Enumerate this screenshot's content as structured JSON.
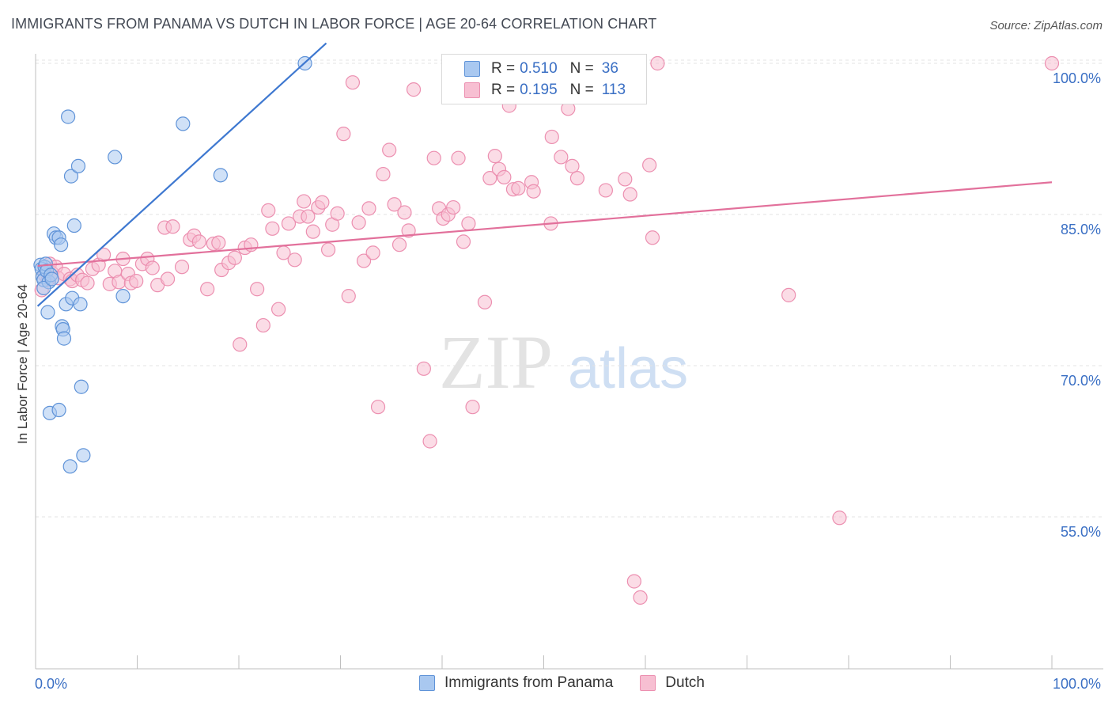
{
  "header": {
    "title": "IMMIGRANTS FROM PANAMA VS DUTCH IN LABOR FORCE | AGE 20-64 CORRELATION CHART",
    "source": "Source: ZipAtlas.com"
  },
  "legend": {
    "rows": [
      {
        "r_label": "R =",
        "r_value": "0.510",
        "n_label": "N =",
        "n_value": "36"
      },
      {
        "r_label": "R =",
        "r_value": "0.195",
        "n_label": "N =",
        "n_value": "113"
      }
    ]
  },
  "bottom_legend": {
    "panama": "Immigrants from Panama",
    "dutch": "Dutch"
  },
  "watermark": {
    "zip": "ZIP",
    "atlas": "atlas"
  },
  "colors": {
    "panama_fill": "#a9c8f0",
    "panama_stroke": "#5f93d8",
    "panama_line": "#3e78d0",
    "dutch_fill": "#f7bfd2",
    "dutch_stroke": "#ec8fb0",
    "dutch_line": "#e2709b",
    "value_text": "#3a6fc4"
  },
  "chart_data": {
    "type": "scatter",
    "title": "IMMIGRANTS FROM PANAMA VS DUTCH IN LABOR FORCE | AGE 20-64 CORRELATION CHART",
    "xlabel": "",
    "ylabel": "In Labor Force | Age 20-64",
    "xlim": [
      0,
      100
    ],
    "ylim": [
      42,
      103
    ],
    "x_tick_labels": [
      "0.0%",
      "100.0%"
    ],
    "y_ticks": [
      55,
      70,
      85,
      100
    ],
    "y_tick_labels": [
      "55.0%",
      "70.0%",
      "85.0%",
      "100.0%"
    ],
    "grid": true,
    "series": [
      {
        "name": "Immigrants from Panama",
        "R": 0.51,
        "N": 36,
        "trend": {
          "x0": 0.2,
          "y0": 75.9,
          "x1": 28.6,
          "y1": 102
        },
        "points": [
          [
            0.5,
            80.0
          ],
          [
            0.6,
            79.6
          ],
          [
            0.7,
            78.8
          ],
          [
            0.8,
            78.5
          ],
          [
            0.9,
            79.8
          ],
          [
            1.0,
            80.1
          ],
          [
            1.1,
            79.4
          ],
          [
            1.3,
            78.3
          ],
          [
            0.8,
            77.7
          ],
          [
            1.2,
            75.3
          ],
          [
            1.5,
            79.0
          ],
          [
            1.6,
            78.6
          ],
          [
            1.8,
            83.1
          ],
          [
            2.0,
            82.7
          ],
          [
            2.3,
            82.7
          ],
          [
            2.5,
            82.0
          ],
          [
            2.6,
            73.9
          ],
          [
            2.7,
            73.6
          ],
          [
            2.8,
            72.7
          ],
          [
            3.0,
            76.1
          ],
          [
            3.4,
            60.0
          ],
          [
            3.2,
            94.7
          ],
          [
            3.5,
            88.8
          ],
          [
            3.6,
            76.7
          ],
          [
            3.8,
            83.9
          ],
          [
            4.2,
            89.8
          ],
          [
            4.4,
            76.1
          ],
          [
            4.5,
            67.9
          ],
          [
            4.7,
            61.1
          ],
          [
            7.8,
            90.7
          ],
          [
            8.6,
            76.9
          ],
          [
            14.5,
            94.0
          ],
          [
            18.2,
            88.9
          ],
          [
            26.5,
            100.0
          ],
          [
            1.4,
            65.3
          ],
          [
            2.3,
            65.6
          ]
        ]
      },
      {
        "name": "Dutch",
        "R": 0.195,
        "N": 113,
        "trend": {
          "x0": 0.2,
          "y0": 79.9,
          "x1": 100,
          "y1": 88.2
        },
        "points": [
          [
            0.6,
            77.5
          ],
          [
            0.9,
            79.0
          ],
          [
            1.2,
            78.5
          ],
          [
            1.4,
            80.1
          ],
          [
            1.6,
            79.2
          ],
          [
            2.0,
            79.8
          ],
          [
            2.2,
            78.7
          ],
          [
            2.8,
            79.1
          ],
          [
            3.4,
            78.6
          ],
          [
            3.6,
            78.4
          ],
          [
            4.1,
            79.0
          ],
          [
            4.6,
            78.5
          ],
          [
            5.1,
            78.2
          ],
          [
            5.6,
            79.6
          ],
          [
            6.2,
            80.0
          ],
          [
            6.7,
            81.0
          ],
          [
            7.3,
            78.1
          ],
          [
            7.8,
            79.4
          ],
          [
            8.2,
            78.3
          ],
          [
            8.6,
            80.6
          ],
          [
            9.1,
            79.1
          ],
          [
            9.4,
            78.2
          ],
          [
            9.9,
            78.4
          ],
          [
            10.5,
            80.1
          ],
          [
            11.0,
            80.6
          ],
          [
            11.5,
            79.7
          ],
          [
            12.0,
            78.0
          ],
          [
            12.7,
            83.7
          ],
          [
            13.0,
            78.6
          ],
          [
            13.5,
            83.8
          ],
          [
            14.4,
            79.8
          ],
          [
            15.2,
            82.5
          ],
          [
            15.6,
            82.9
          ],
          [
            16.1,
            82.3
          ],
          [
            16.9,
            77.6
          ],
          [
            17.5,
            82.1
          ],
          [
            18.0,
            82.2
          ],
          [
            18.3,
            79.5
          ],
          [
            19.0,
            80.2
          ],
          [
            19.6,
            80.7
          ],
          [
            20.1,
            72.1
          ],
          [
            20.6,
            81.7
          ],
          [
            21.2,
            82.0
          ],
          [
            21.8,
            77.6
          ],
          [
            22.4,
            74.0
          ],
          [
            22.9,
            85.4
          ],
          [
            23.3,
            83.6
          ],
          [
            23.9,
            75.6
          ],
          [
            24.4,
            81.2
          ],
          [
            24.9,
            84.1
          ],
          [
            25.5,
            80.5
          ],
          [
            26.0,
            84.8
          ],
          [
            26.4,
            86.3
          ],
          [
            26.8,
            84.8
          ],
          [
            27.3,
            83.3
          ],
          [
            27.8,
            85.7
          ],
          [
            28.2,
            86.2
          ],
          [
            28.8,
            81.5
          ],
          [
            29.2,
            84.0
          ],
          [
            29.7,
            85.1
          ],
          [
            30.3,
            93.0
          ],
          [
            30.8,
            76.9
          ],
          [
            31.2,
            98.1
          ],
          [
            31.8,
            84.2
          ],
          [
            32.3,
            80.4
          ],
          [
            32.8,
            85.6
          ],
          [
            33.2,
            81.2
          ],
          [
            33.7,
            65.9
          ],
          [
            34.2,
            89.0
          ],
          [
            34.8,
            91.4
          ],
          [
            35.3,
            86.0
          ],
          [
            35.8,
            82.0
          ],
          [
            36.3,
            85.2
          ],
          [
            36.7,
            83.4
          ],
          [
            37.2,
            97.4
          ],
          [
            38.2,
            69.7
          ],
          [
            38.8,
            62.5
          ],
          [
            39.2,
            90.6
          ],
          [
            39.7,
            85.6
          ],
          [
            40.1,
            84.6
          ],
          [
            40.6,
            85.0
          ],
          [
            41.1,
            85.7
          ],
          [
            41.6,
            90.6
          ],
          [
            42.1,
            82.3
          ],
          [
            42.6,
            84.1
          ],
          [
            43.0,
            65.9
          ],
          [
            44.2,
            76.3
          ],
          [
            44.7,
            88.6
          ],
          [
            45.2,
            90.8
          ],
          [
            45.6,
            89.5
          ],
          [
            46.1,
            88.7
          ],
          [
            46.6,
            95.8
          ],
          [
            47.0,
            87.5
          ],
          [
            47.5,
            87.6
          ],
          [
            48.8,
            88.2
          ],
          [
            49.0,
            87.3
          ],
          [
            50.7,
            84.1
          ],
          [
            50.8,
            92.7
          ],
          [
            51.7,
            90.7
          ],
          [
            52.4,
            95.5
          ],
          [
            52.8,
            89.8
          ],
          [
            53.3,
            88.6
          ],
          [
            56.1,
            87.4
          ],
          [
            58.0,
            88.5
          ],
          [
            58.5,
            87.0
          ],
          [
            58.9,
            48.6
          ],
          [
            59.5,
            47.0
          ],
          [
            60.4,
            89.9
          ],
          [
            60.7,
            82.7
          ],
          [
            61.2,
            100.0
          ],
          [
            74.1,
            77.0
          ],
          [
            79.1,
            54.9
          ],
          [
            100.0,
            100.0
          ]
        ]
      }
    ]
  }
}
